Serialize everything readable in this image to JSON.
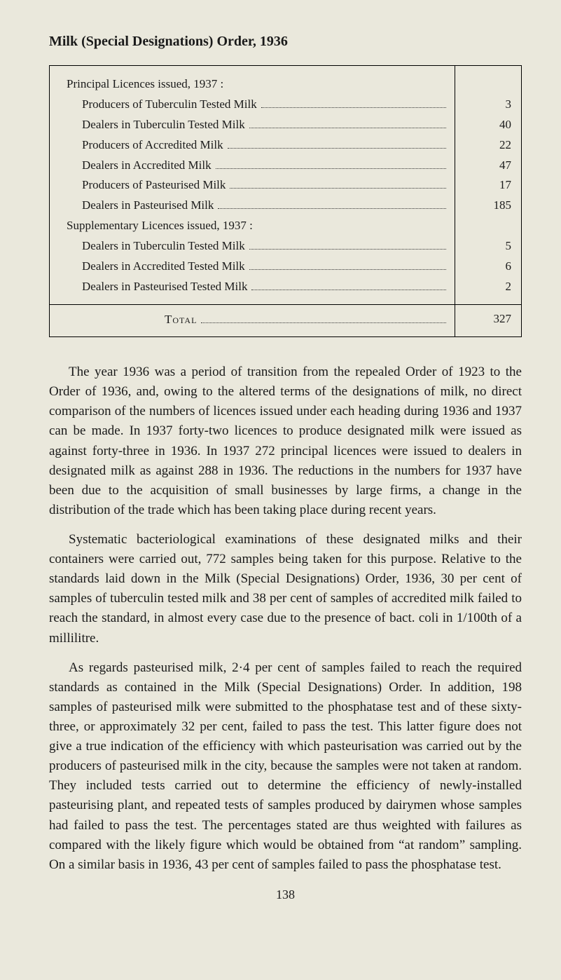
{
  "title": "Milk (Special Designations) Order, 1936",
  "table": {
    "section1_heading": "Principal Licences issued, 1937 :",
    "section2_heading": "Supplementary Licences issued, 1937 :",
    "rows1": [
      {
        "label": "Producers of Tuberculin Tested Milk",
        "value": "3"
      },
      {
        "label": "Dealers in Tuberculin Tested Milk",
        "value": "40"
      },
      {
        "label": "Producers of Accredited Milk",
        "value": "22"
      },
      {
        "label": "Dealers in Accredited Milk",
        "value": "47"
      },
      {
        "label": "Producers of Pasteurised Milk",
        "value": "17"
      },
      {
        "label": "Dealers in Pasteurised Milk",
        "value": "185"
      }
    ],
    "rows2": [
      {
        "label": "Dealers in Tuberculin Tested Milk",
        "value": "5"
      },
      {
        "label": "Dealers in Accredited Tested Milk",
        "value": "6"
      },
      {
        "label": "Dealers in Pasteurised Tested Milk",
        "value": "2"
      }
    ],
    "total_label": "Total",
    "total_value": "327"
  },
  "paragraphs": [
    "The year 1936 was a period of transition from the repealed Order of 1923 to the Order of 1936, and, owing to the altered terms of the designations of milk, no direct comparison of the numbers of licences issued under each heading during 1936 and 1937 can be made. In 1937 forty-two licences to produce designated milk were issued as against forty-three in 1936. In 1937 272 principal licences were issued to dealers in designated milk as against 288 in 1936. The reductions in the numbers for 1937 have been due to the acquisition of small businesses by large firms, a change in the distribution of the trade which has been taking place during recent years.",
    "Systematic bacteriological examinations of these designated milks and their containers were carried out, 772 samples being taken for this purpose. Relative to the standards laid down in the Milk (Special Designations) Order, 1936, 30 per cent of samples of tuberculin tested milk and 38 per cent of samples of accredited milk failed to reach the standard, in almost every case due to the presence of bact. coli in 1/100th of a millilitre.",
    "As regards pasteurised milk, 2·4 per cent of samples failed to reach the required standards as contained in the Milk (Special Designations) Order. In addition, 198 samples of pasteurised milk were submitted to the phosphatase test and of these sixty-three, or approximately 32 per cent, failed to pass the test. This latter figure does not give a true indication of the efficiency with which pasteurisation was carried out by the producers of pasteurised milk in the city, because the samples were not taken at random. They included tests carried out to determine the efficiency of newly-installed pasteurising plant, and repeated tests of samples produced by dairymen whose samples had failed to pass the test. The percentages stated are thus weighted with failures as compared with the likely figure which would be obtained from “at random” sampling. On a similar basis in 1936, 43 per cent of samples failed to pass the phosphatase test."
  ],
  "page_number": "138"
}
